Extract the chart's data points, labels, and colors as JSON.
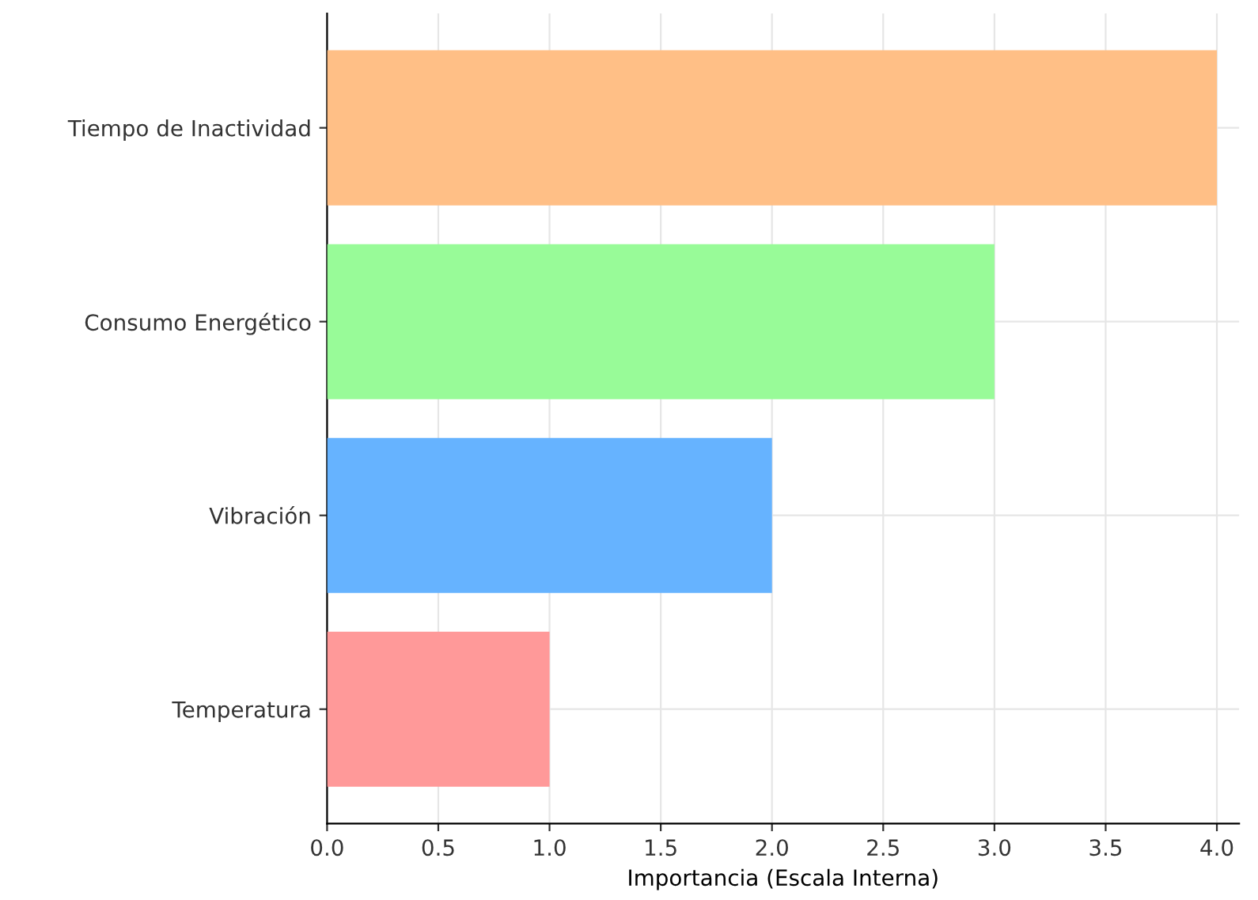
{
  "chart_data": {
    "type": "bar",
    "orientation": "horizontal",
    "xlabel": "Importancia (Escala Interna)",
    "categories": [
      "Tiempo de Inactividad",
      "Consumo Energético",
      "Vibración",
      "Temperatura"
    ],
    "values": [
      4,
      3,
      2,
      1
    ],
    "colors": [
      "#ffbf86",
      "#98fb98",
      "#66b3ff",
      "#ff9999"
    ],
    "xlim": [
      0,
      4.1
    ],
    "xticks": [
      {
        "value": 0,
        "label": "0.0"
      },
      {
        "value": 0.5,
        "label": "0.5"
      },
      {
        "value": 1,
        "label": "1.0"
      },
      {
        "value": 1.5,
        "label": "1.5"
      },
      {
        "value": 2,
        "label": "2.0"
      },
      {
        "value": 2.5,
        "label": "2.5"
      },
      {
        "value": 3,
        "label": "3.0"
      },
      {
        "value": 3.5,
        "label": "3.5"
      },
      {
        "value": 4,
        "label": "4.0"
      }
    ],
    "grid": true
  }
}
